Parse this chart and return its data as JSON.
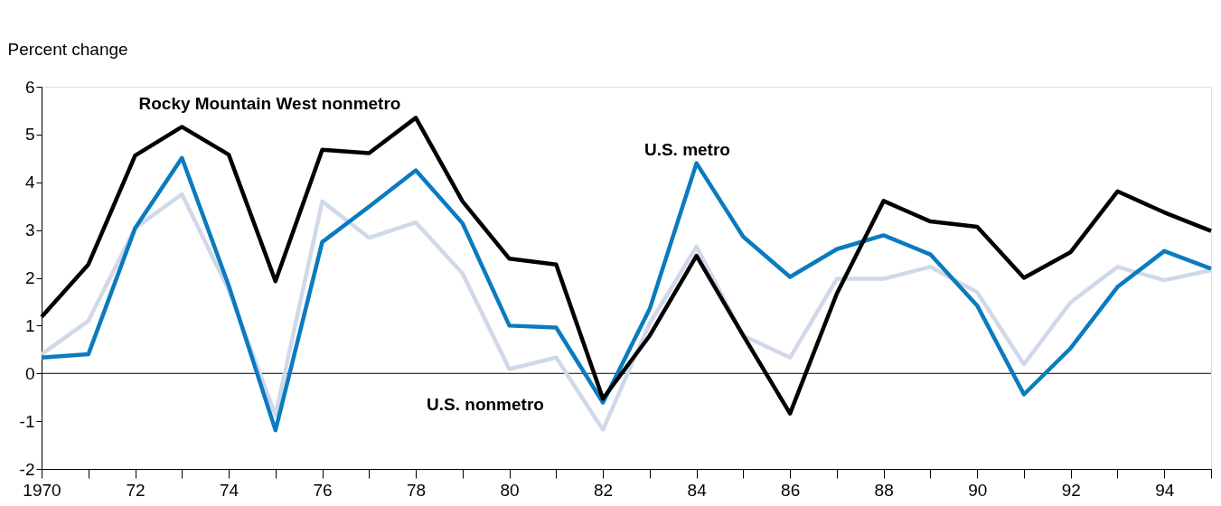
{
  "chart_data": {
    "type": "line",
    "ylabel": "Percent change",
    "x": [
      1970,
      1971,
      1972,
      1973,
      1974,
      1975,
      1976,
      1977,
      1978,
      1979,
      1980,
      1981,
      1982,
      1983,
      1984,
      1985,
      1986,
      1987,
      1988,
      1989,
      1990,
      1991,
      1992,
      1993,
      1994,
      1995
    ],
    "series": [
      {
        "name": "U.S. nonmetro",
        "color": "#d0d8ea",
        "values": [
          0.4,
          1.1,
          3.04,
          3.75,
          1.75,
          -0.88,
          3.6,
          2.84,
          3.16,
          2.09,
          0.09,
          0.33,
          -1.18,
          1.05,
          2.65,
          0.79,
          0.33,
          1.98,
          1.98,
          2.23,
          1.7,
          0.19,
          1.49,
          2.23,
          1.95,
          2.16
        ]
      },
      {
        "name": "U.S. metro",
        "color": "#0a7bbf",
        "values": [
          0.33,
          0.4,
          3.04,
          4.51,
          1.84,
          -1.19,
          2.75,
          3.49,
          4.25,
          3.14,
          1.0,
          0.96,
          -0.61,
          1.35,
          4.4,
          2.86,
          2.02,
          2.6,
          2.89,
          2.49,
          1.42,
          -0.44,
          0.53,
          1.81,
          2.56,
          2.19
        ]
      },
      {
        "name": "Rocky Mountain West nonmetro",
        "color": "#000000",
        "values": [
          1.18,
          2.28,
          4.56,
          5.16,
          4.58,
          1.93,
          4.68,
          4.61,
          5.35,
          3.6,
          2.4,
          2.28,
          -0.53,
          0.79,
          2.46,
          0.79,
          -0.84,
          1.67,
          3.61,
          3.18,
          3.07,
          2.0,
          2.54,
          3.81,
          3.37,
          2.98
        ]
      }
    ],
    "xlim": [
      1970,
      1995
    ],
    "xticks": [
      1970,
      {
        "value": 1971,
        "label": null
      },
      {
        "value": 1972,
        "label": "72"
      },
      {
        "value": 1973,
        "label": null
      },
      {
        "value": 1974,
        "label": "74"
      },
      {
        "value": 1975,
        "label": null
      },
      {
        "value": 1976,
        "label": "76"
      },
      {
        "value": 1977,
        "label": null
      },
      {
        "value": 1978,
        "label": "78"
      },
      {
        "value": 1979,
        "label": null
      },
      {
        "value": 1980,
        "label": "80"
      },
      {
        "value": 1981,
        "label": null
      },
      {
        "value": 1982,
        "label": "82"
      },
      {
        "value": 1983,
        "label": null
      },
      {
        "value": 1984,
        "label": "84"
      },
      {
        "value": 1985,
        "label": null
      },
      {
        "value": 1986,
        "label": "86"
      },
      {
        "value": 1987,
        "label": null
      },
      {
        "value": 1988,
        "label": "88"
      },
      {
        "value": 1989,
        "label": null
      },
      {
        "value": 1990,
        "label": "90"
      },
      {
        "value": 1991,
        "label": null
      },
      {
        "value": 1992,
        "label": "92"
      },
      {
        "value": 1993,
        "label": null
      },
      {
        "value": 1994,
        "label": "94"
      },
      {
        "value": 1995,
        "label": null
      }
    ],
    "ylim": [
      -2,
      6
    ],
    "yticks": [
      -2,
      -1,
      0,
      1,
      2,
      3,
      4,
      5,
      6
    ],
    "ref_lines": [
      {
        "axis": "y",
        "value": 0,
        "color": "#000000"
      }
    ],
    "grid": false,
    "marker": "none",
    "line_style": "solid"
  }
}
